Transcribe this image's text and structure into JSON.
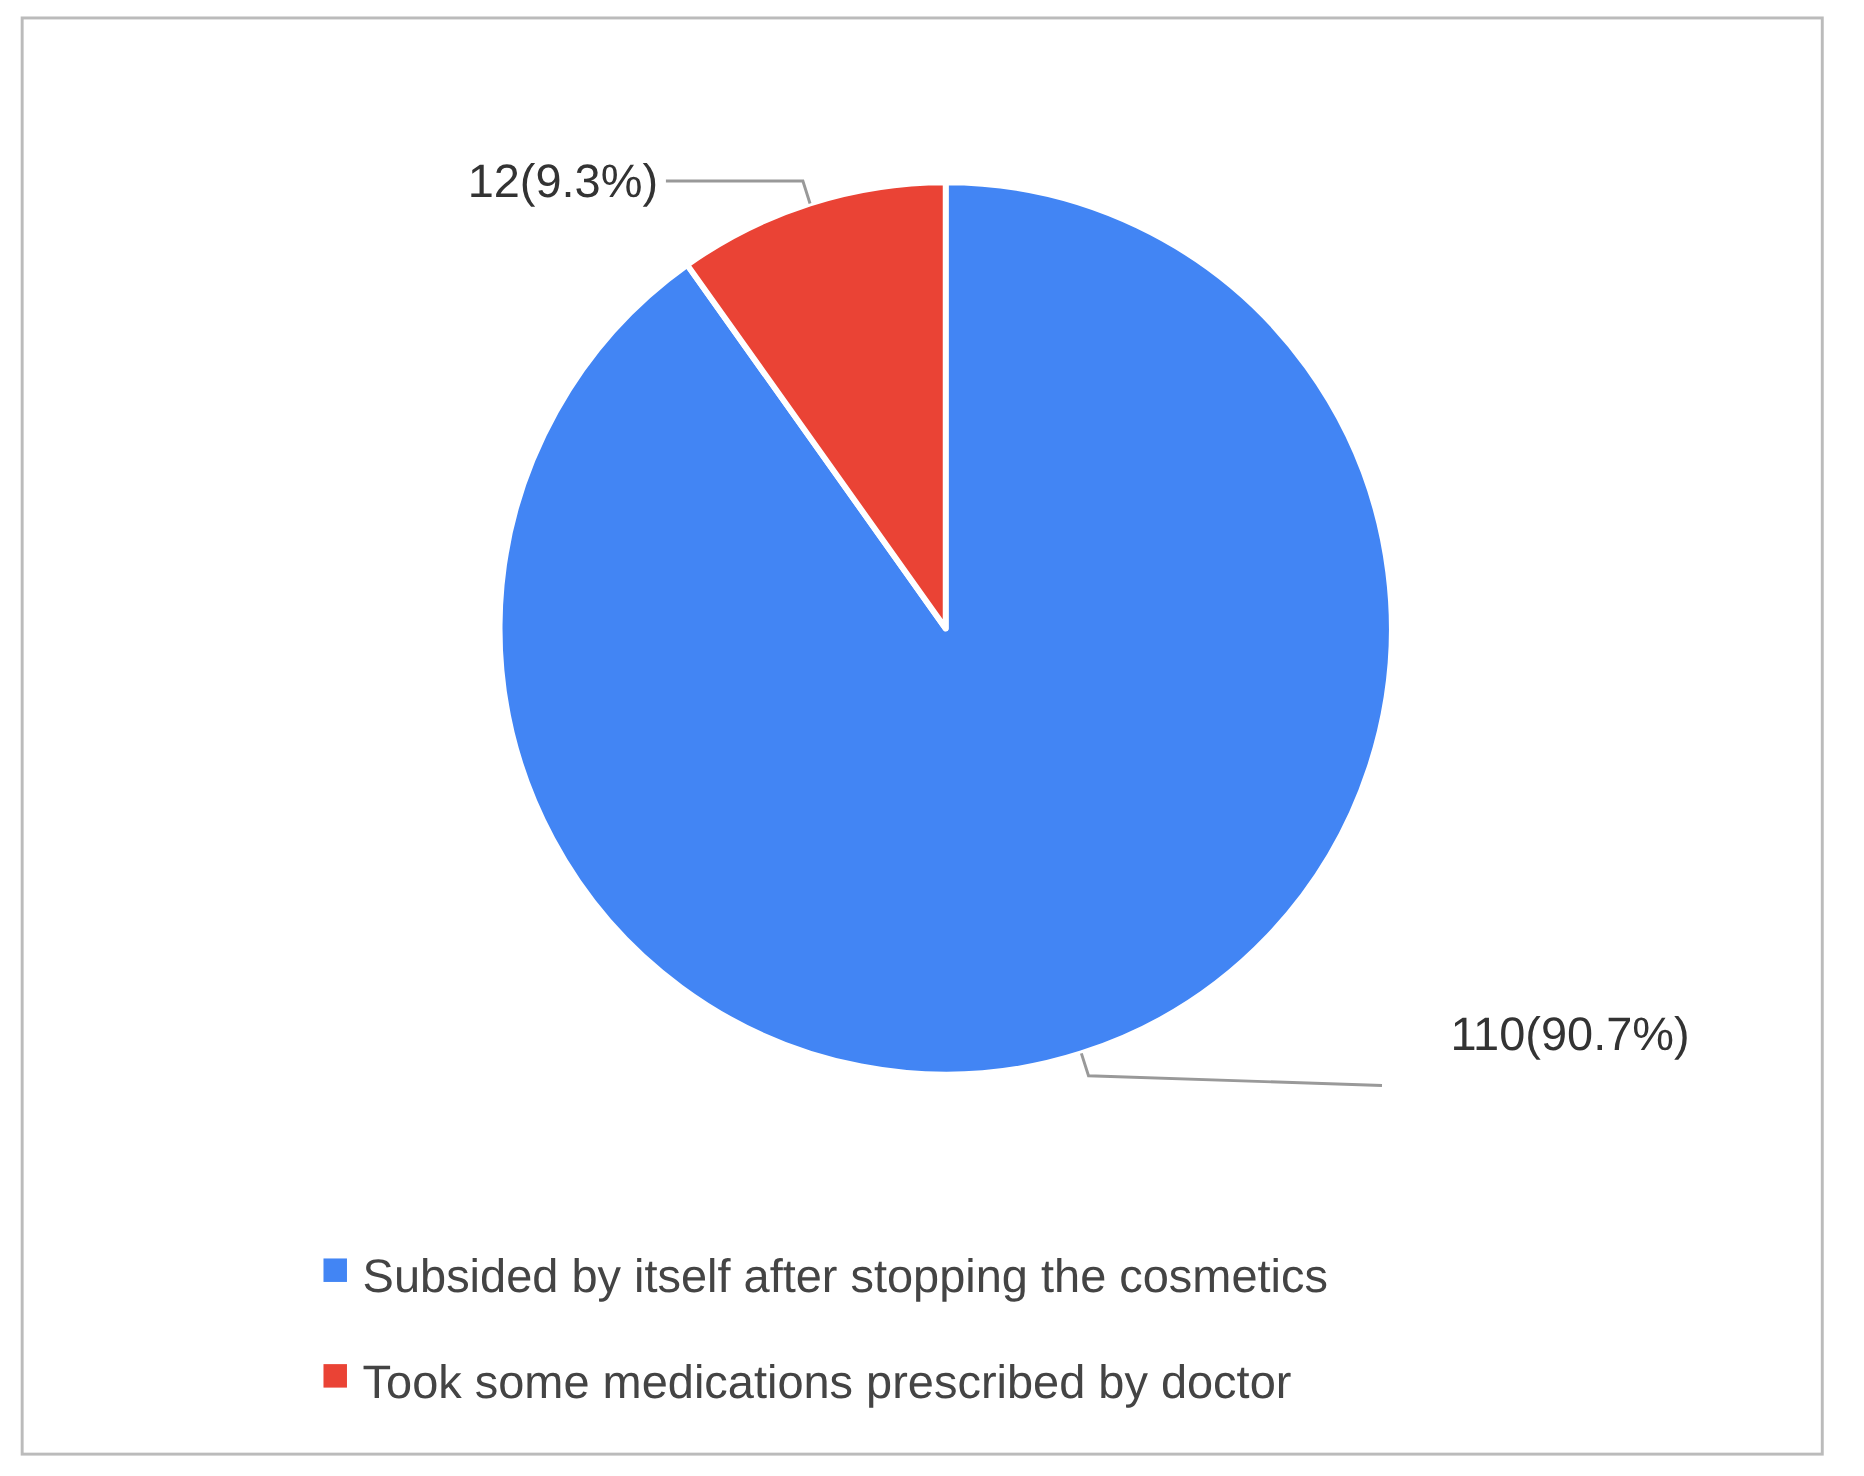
{
  "chart_data": {
    "type": "pie",
    "categories": [
      "Subsided by itself after stopping the cosmetics",
      "Took some medications prescribed by doctor"
    ],
    "values": [
      110,
      12
    ],
    "colors": [
      "#4285f4",
      "#ea4335"
    ],
    "value_labels": [
      "110(90.7%)",
      "12(9.3%)"
    ],
    "legend": "bottom"
  }
}
